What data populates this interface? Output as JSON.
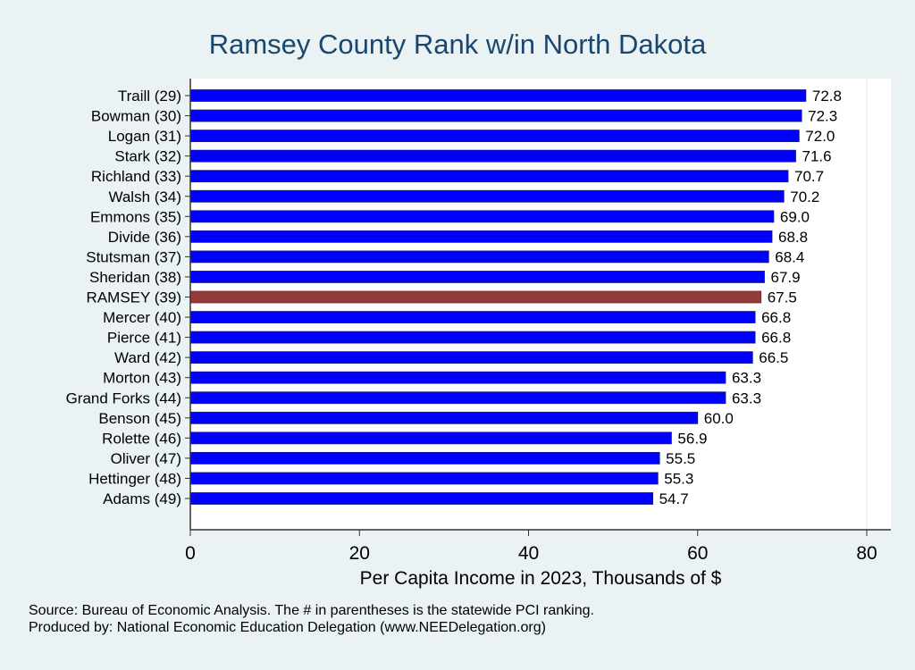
{
  "chart_data": {
    "type": "bar",
    "orientation": "horizontal",
    "title": "Ramsey County Rank w/in North Dakota",
    "xlabel": "Per Capita Income in 2023, Thousands of $",
    "ylabel": "",
    "xlim": [
      0,
      83
    ],
    "xticks": [
      0,
      20,
      40,
      60,
      80
    ],
    "grid": "vertical at 80",
    "categories": [
      "Traill (29)",
      "Bowman (30)",
      "Logan (31)",
      "Stark (32)",
      "Richland (33)",
      "Walsh (34)",
      "Emmons (35)",
      "Divide (36)",
      "Stutsman (37)",
      "Sheridan (38)",
      "RAMSEY (39)",
      "Mercer (40)",
      "Pierce (41)",
      "Ward (42)",
      "Morton (43)",
      "Grand Forks (44)",
      "Benson (45)",
      "Rolette (46)",
      "Oliver (47)",
      "Hettinger (48)",
      "Adams (49)"
    ],
    "values": [
      72.8,
      72.3,
      72.0,
      71.6,
      70.7,
      70.2,
      69.0,
      68.8,
      68.4,
      67.9,
      67.5,
      66.8,
      66.8,
      66.5,
      63.3,
      63.3,
      60.0,
      56.9,
      55.5,
      55.3,
      54.7
    ],
    "labels": [
      "72.8",
      "72.3",
      "72.0",
      "71.6",
      "70.7",
      "70.2",
      "69.0",
      "68.8",
      "68.4",
      "67.9",
      "67.5",
      "66.8",
      "66.8",
      "66.5",
      "63.3",
      "63.3",
      "60.0",
      "56.9",
      "55.5",
      "55.3",
      "54.7"
    ],
    "highlight": "RAMSEY (39)",
    "colors": {
      "bar": "#0000ff",
      "highlight": "#943b3b",
      "background": "#eaf2f3",
      "title": "#1a476f"
    }
  },
  "notes": {
    "source": "Source: Bureau of Economic Analysis. The # in parentheses is the statewide PCI ranking.",
    "produced": "Produced by: National Economic Education Delegation (www.NEEDelegation.org)"
  }
}
